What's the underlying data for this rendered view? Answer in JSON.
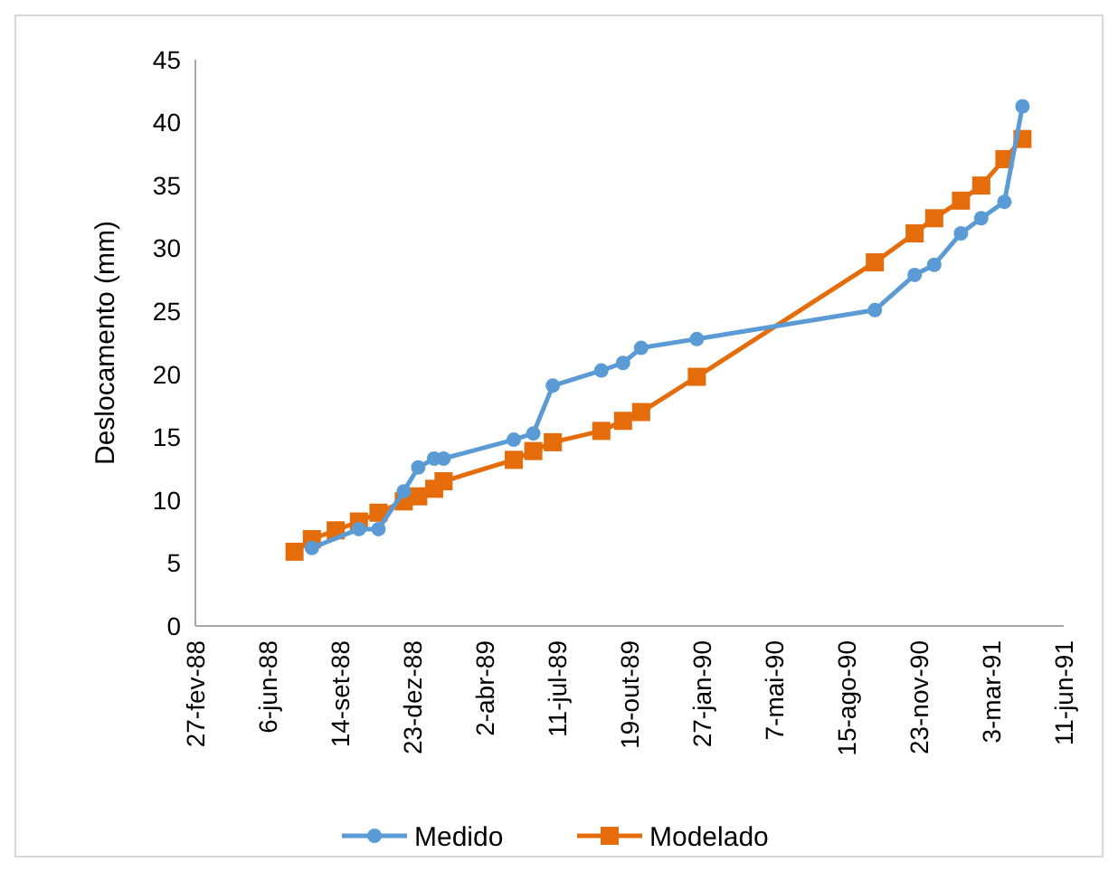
{
  "chart_data": {
    "type": "line",
    "ylabel": "Deslocamento (mm)",
    "xlim": [
      "1988-02-27",
      "1991-06-11"
    ],
    "xticks": [
      {
        "value": "1988-02-27",
        "label": "27-fev-88"
      },
      {
        "value": "1988-06-06",
        "label": "6-jun-88"
      },
      {
        "value": "1988-09-14",
        "label": "14-set-88"
      },
      {
        "value": "1988-12-23",
        "label": "23-dez-88"
      },
      {
        "value": "1989-04-02",
        "label": "2-abr-89"
      },
      {
        "value": "1989-07-11",
        "label": "11-jul-89"
      },
      {
        "value": "1989-10-19",
        "label": "19-out-89"
      },
      {
        "value": "1990-01-27",
        "label": "27-jan-90"
      },
      {
        "value": "1990-05-07",
        "label": "7-mai-90"
      },
      {
        "value": "1990-08-15",
        "label": "15-ago-90"
      },
      {
        "value": "1990-11-23",
        "label": "23-nov-90"
      },
      {
        "value": "1991-03-03",
        "label": "3-mar-91"
      },
      {
        "value": "1991-06-11",
        "label": "11-jun-91"
      }
    ],
    "ylim": [
      0,
      45
    ],
    "yticks": [
      0,
      5,
      10,
      15,
      20,
      25,
      30,
      35,
      40,
      45
    ],
    "grid": false,
    "legend": "bottom",
    "series": [
      {
        "name": "Medido",
        "color": "#5b9bd5",
        "marker": "circle",
        "x": [
          "1988-08-06",
          "1988-10-10",
          "1988-11-06",
          "1988-12-11",
          "1988-12-31",
          "1989-01-22",
          "1989-02-04",
          "1989-05-12",
          "1989-06-08",
          "1989-07-05",
          "1989-09-10",
          "1989-10-10",
          "1989-11-04",
          "1990-01-20",
          "1990-09-23",
          "1990-11-17",
          "1990-12-14",
          "1991-01-20",
          "1991-02-17",
          "1991-03-21",
          "1991-04-15"
        ],
        "values": [
          6.2,
          7.7,
          7.7,
          10.7,
          12.6,
          13.3,
          13.3,
          14.8,
          15.3,
          19.1,
          20.3,
          20.9,
          22.1,
          22.8,
          25.1,
          27.9,
          28.7,
          31.2,
          32.4,
          33.7,
          41.3
        ]
      },
      {
        "name": "Modelado",
        "color": "#e46c0a",
        "marker": "square",
        "x": [
          "1988-07-13",
          "1988-08-06",
          "1988-09-08",
          "1988-10-10",
          "1988-11-06",
          "1988-12-11",
          "1988-12-31",
          "1989-01-22",
          "1989-02-04",
          "1989-05-12",
          "1989-06-08",
          "1989-07-05",
          "1989-09-10",
          "1989-10-10",
          "1989-11-04",
          "1990-01-20",
          "1990-09-23",
          "1990-11-17",
          "1990-12-14",
          "1991-01-20",
          "1991-02-17",
          "1991-03-21",
          "1991-04-15"
        ],
        "values": [
          5.9,
          6.9,
          7.6,
          8.3,
          9.0,
          9.9,
          10.3,
          10.9,
          11.5,
          13.2,
          13.9,
          14.6,
          15.5,
          16.3,
          17.0,
          19.8,
          28.9,
          31.2,
          32.4,
          33.8,
          35.0,
          37.1,
          38.7
        ]
      }
    ]
  }
}
